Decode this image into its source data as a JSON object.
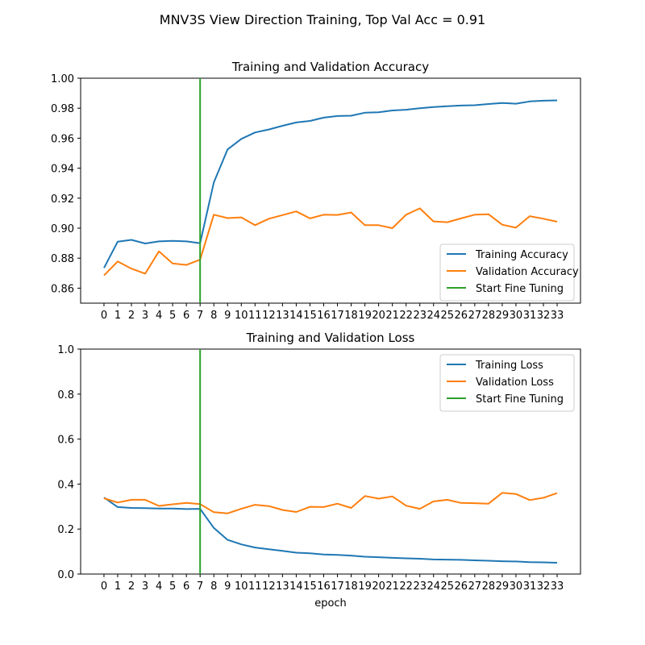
{
  "figure": {
    "suptitle": "MNV3S View Direction Training, Top Val Acc = 0.91",
    "colors": {
      "training": "#1f77b4",
      "validation": "#ff7f0e",
      "fine_tune": "#2ca02c"
    }
  },
  "chart_data": [
    {
      "type": "line",
      "title": "Training and Validation Accuracy",
      "xlabel": "",
      "ylabel": "",
      "x": [
        0,
        1,
        2,
        3,
        4,
        5,
        6,
        7,
        8,
        9,
        10,
        11,
        12,
        13,
        14,
        15,
        16,
        17,
        18,
        19,
        20,
        21,
        22,
        23,
        24,
        25,
        26,
        27,
        28,
        29,
        30,
        31,
        32,
        33
      ],
      "xticks": [
        "0",
        "1",
        "2",
        "3",
        "4",
        "5",
        "6",
        "7",
        "8",
        "9",
        "10",
        "11",
        "12",
        "13",
        "14",
        "15",
        "16",
        "17",
        "18",
        "19",
        "20",
        "21",
        "22",
        "23",
        "24",
        "25",
        "26",
        "27",
        "28",
        "29",
        "30",
        "31",
        "32",
        "33"
      ],
      "xlim": [
        -1.7,
        34.7
      ],
      "ylim": [
        0.85,
        1.0
      ],
      "yticks": [
        "0.86",
        "0.88",
        "0.90",
        "0.92",
        "0.94",
        "0.96",
        "0.98",
        "1.00"
      ],
      "ytick_values": [
        0.86,
        0.88,
        0.9,
        0.92,
        0.94,
        0.96,
        0.98,
        1.0
      ],
      "legend_position": "lower right",
      "series": [
        {
          "name": "Training Accuracy",
          "color": "#1f77b4",
          "values": [
            0.8735,
            0.891,
            0.8922,
            0.8898,
            0.8912,
            0.8915,
            0.8912,
            0.89,
            0.9305,
            0.9525,
            0.9595,
            0.9638,
            0.9658,
            0.9683,
            0.9705,
            0.9715,
            0.9737,
            0.9748,
            0.975,
            0.977,
            0.9773,
            0.9785,
            0.979,
            0.98,
            0.9808,
            0.9813,
            0.9818,
            0.982,
            0.9828,
            0.9835,
            0.983,
            0.9845,
            0.985,
            0.9852
          ]
        },
        {
          "name": "Validation Accuracy",
          "color": "#ff7f0e",
          "values": [
            0.8685,
            0.8778,
            0.873,
            0.8697,
            0.8845,
            0.8765,
            0.8755,
            0.879,
            0.909,
            0.9067,
            0.9072,
            0.902,
            0.9063,
            0.9087,
            0.9112,
            0.9065,
            0.909,
            0.9088,
            0.9105,
            0.902,
            0.902,
            0.9,
            0.909,
            0.9132,
            0.9045,
            0.904,
            0.9065,
            0.909,
            0.9093,
            0.9023,
            0.9003,
            0.908,
            0.9063,
            0.9043
          ]
        }
      ],
      "vline": {
        "name": "Start Fine Tuning",
        "x": 7,
        "color": "#2ca02c"
      }
    },
    {
      "type": "line",
      "title": "Training and Validation Loss",
      "xlabel": "epoch",
      "ylabel": "",
      "x": [
        0,
        1,
        2,
        3,
        4,
        5,
        6,
        7,
        8,
        9,
        10,
        11,
        12,
        13,
        14,
        15,
        16,
        17,
        18,
        19,
        20,
        21,
        22,
        23,
        24,
        25,
        26,
        27,
        28,
        29,
        30,
        31,
        32,
        33
      ],
      "xticks": [
        "0",
        "1",
        "2",
        "3",
        "4",
        "5",
        "6",
        "7",
        "8",
        "9",
        "10",
        "11",
        "12",
        "13",
        "14",
        "15",
        "16",
        "17",
        "18",
        "19",
        "20",
        "21",
        "22",
        "23",
        "24",
        "25",
        "26",
        "27",
        "28",
        "29",
        "30",
        "31",
        "32",
        "33"
      ],
      "xlim": [
        -1.7,
        34.7
      ],
      "ylim": [
        0.0,
        1.0
      ],
      "yticks": [
        "0.0",
        "0.2",
        "0.4",
        "0.6",
        "0.8",
        "1.0"
      ],
      "ytick_values": [
        0.0,
        0.2,
        0.4,
        0.6,
        0.8,
        1.0
      ],
      "legend_position": "upper right",
      "series": [
        {
          "name": "Training Loss",
          "color": "#1f77b4",
          "values": [
            0.34,
            0.298,
            0.294,
            0.293,
            0.291,
            0.291,
            0.289,
            0.29,
            0.205,
            0.152,
            0.132,
            0.118,
            0.11,
            0.103,
            0.095,
            0.092,
            0.087,
            0.085,
            0.082,
            0.077,
            0.075,
            0.072,
            0.07,
            0.068,
            0.065,
            0.064,
            0.063,
            0.061,
            0.059,
            0.057,
            0.056,
            0.053,
            0.052,
            0.05
          ]
        },
        {
          "name": "Validation Loss",
          "color": "#ff7f0e",
          "values": [
            0.337,
            0.318,
            0.33,
            0.33,
            0.303,
            0.31,
            0.316,
            0.311,
            0.275,
            0.27,
            0.29,
            0.308,
            0.302,
            0.285,
            0.276,
            0.299,
            0.298,
            0.313,
            0.294,
            0.347,
            0.335,
            0.345,
            0.304,
            0.29,
            0.323,
            0.33,
            0.316,
            0.315,
            0.313,
            0.361,
            0.356,
            0.329,
            0.339,
            0.36
          ]
        }
      ],
      "vline": {
        "name": "Start Fine Tuning",
        "x": 7,
        "color": "#2ca02c"
      }
    }
  ]
}
